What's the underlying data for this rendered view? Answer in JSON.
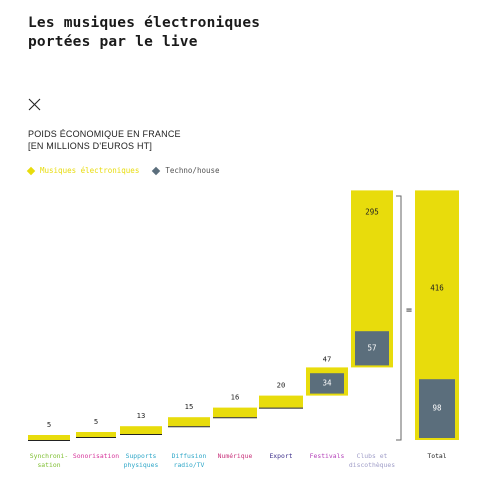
{
  "title_lines": [
    "Les musiques électroniques",
    "portées par le live"
  ],
  "subtitle_lines": [
    "POIDS ÉCONOMIQUE EN FRANCE",
    "[EN MILLIONS D'EUROS HT]"
  ],
  "colors": {
    "yellow": "#E8DC0C",
    "gray": "#5B6E7C",
    "dark": "#222222"
  },
  "legend": [
    {
      "label": "Musiques électroniques",
      "color": "#E8DC0C",
      "text_color": "#E8DC0C"
    },
    {
      "label": "Techno/house",
      "color": "#5B6E7C",
      "text_color": "#555555"
    }
  ],
  "equals_sign": "=",
  "chart_data": {
    "type": "bar",
    "subtype": "waterfall",
    "title": "Les musiques électroniques portées par le live",
    "ylabel": "POIDS ÉCONOMIQUE EN FRANCE [EN MILLIONS D'EUROS HT]",
    "categories": [
      {
        "label": "Synchroni-\nsation",
        "color": "#7DBE2E"
      },
      {
        "label": "Sonorisation",
        "color": "#D6339A"
      },
      {
        "label": "Supports\nphysiques",
        "color": "#2FA7C8"
      },
      {
        "label": "Diffusion\nradio/TV",
        "color": "#2FA7C8"
      },
      {
        "label": "Numérique",
        "color": "#C8327B"
      },
      {
        "label": "Export",
        "color": "#3D2F8A"
      },
      {
        "label": "Festivals",
        "color": "#B33FB8"
      },
      {
        "label": "Clubs et\ndiscothèques",
        "color": "#A09EC8"
      },
      {
        "label": "Total",
        "color": "#222222"
      }
    ],
    "series": [
      {
        "name": "Musiques électroniques",
        "values": [
          5,
          5,
          13,
          15,
          16,
          20,
          47,
          295,
          416
        ]
      },
      {
        "name": "Techno/house",
        "values": [
          null,
          null,
          null,
          null,
          null,
          null,
          34,
          57,
          98
        ]
      }
    ],
    "total_value": 416,
    "total_techno": 98
  }
}
